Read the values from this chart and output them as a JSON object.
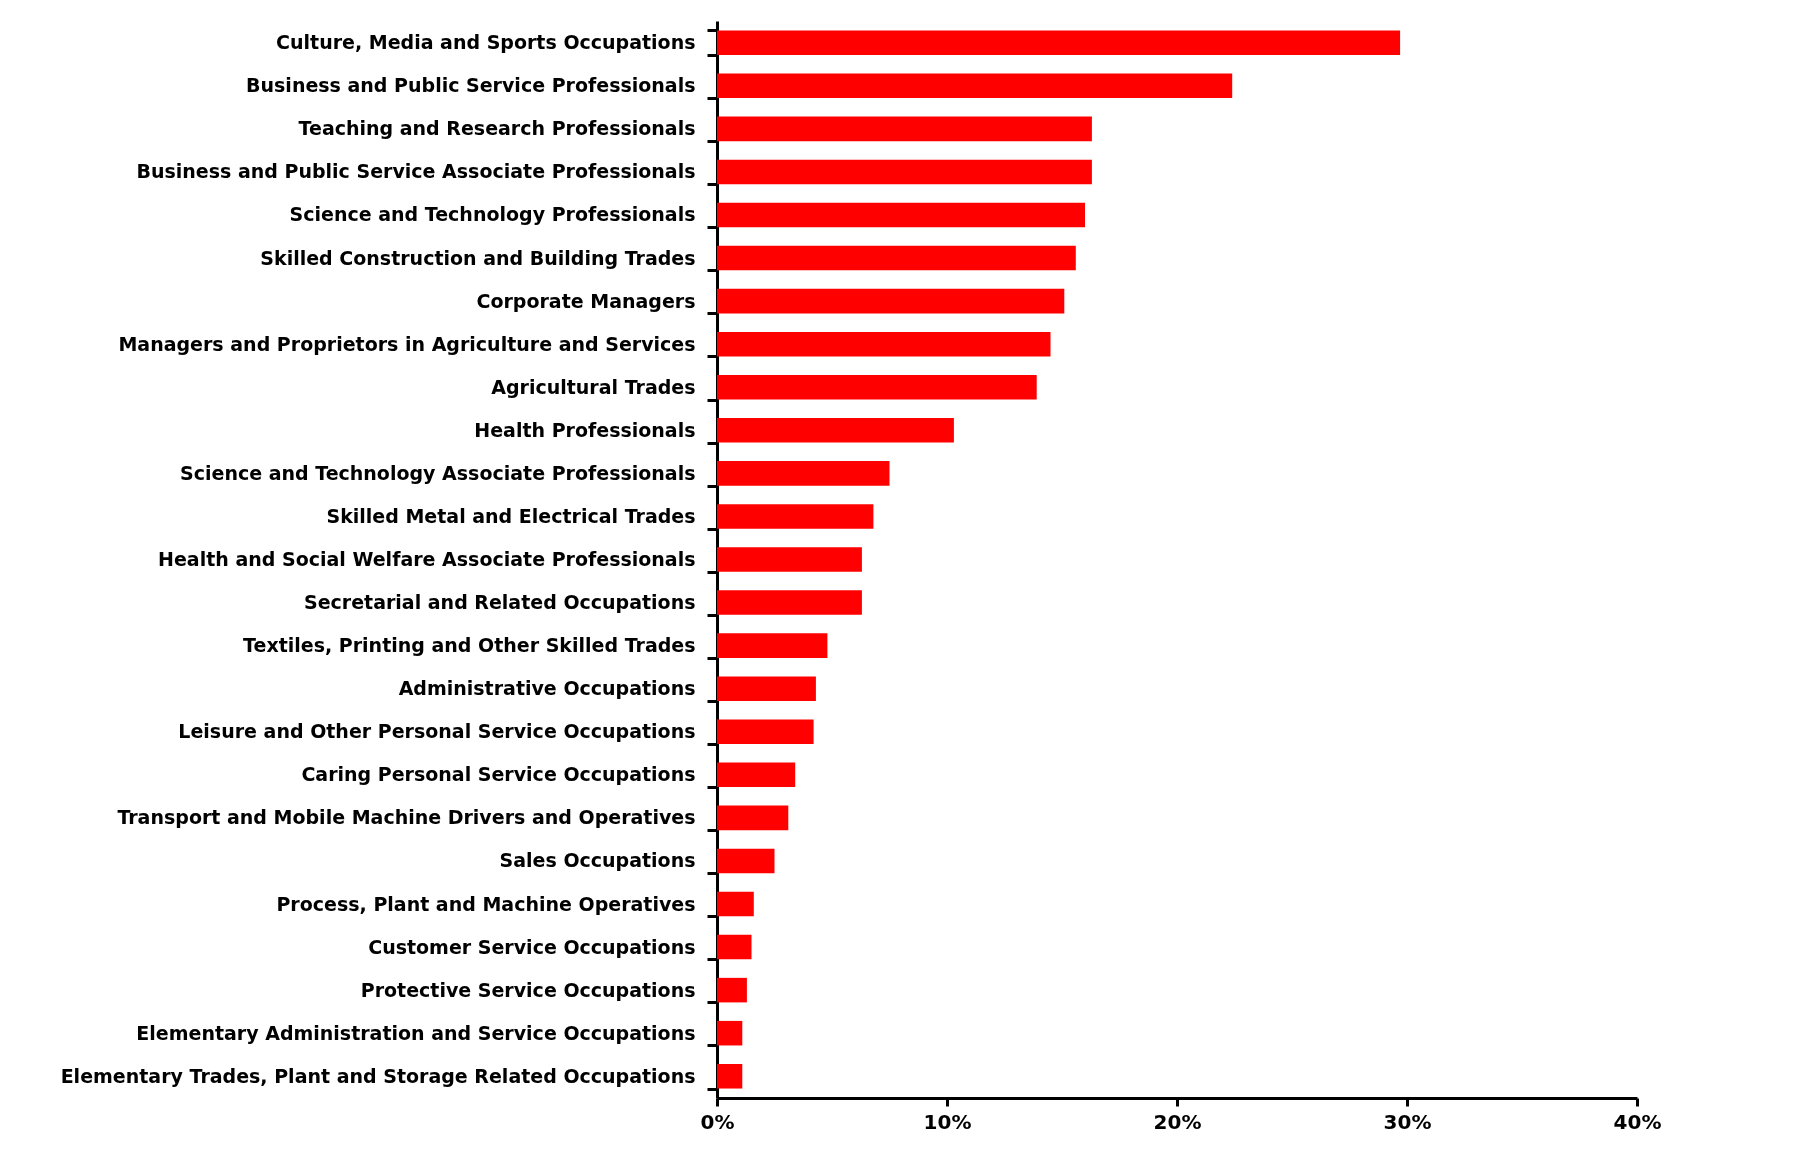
{
  "chart_data": {
    "type": "bar",
    "orientation": "horizontal",
    "categories": [
      "Culture, Media and Sports Occupations",
      "Business and Public Service Professionals",
      "Teaching and Research Professionals",
      "Business and Public Service Associate Professionals",
      "Science and Technology Professionals",
      "Skilled Construction and Building Trades",
      "Corporate Managers",
      "Managers and Proprietors in Agriculture and Services",
      "Agricultural Trades",
      "Health Professionals",
      "Science and Technology Associate Professionals",
      "Skilled Metal and Electrical Trades",
      "Health and Social Welfare Associate Professionals",
      "Secretarial and Related Occupations",
      "Textiles, Printing and Other Skilled Trades",
      "Administrative Occupations",
      "Leisure and Other Personal Service Occupations",
      "Caring Personal Service Occupations",
      "Transport and Mobile Machine Drivers and Operatives",
      "Sales Occupations",
      "Process, Plant and Machine Operatives",
      "Customer Service Occupations",
      "Protective Service Occupations",
      "Elementary Administration and Service Occupations",
      "Elementary Trades, Plant and Storage Related Occupations"
    ],
    "values": [
      29.7,
      22.4,
      16.3,
      16.3,
      16.0,
      15.6,
      15.1,
      14.5,
      13.9,
      10.3,
      7.5,
      6.8,
      6.3,
      6.3,
      4.8,
      4.3,
      4.2,
      3.4,
      3.1,
      2.5,
      1.6,
      1.5,
      1.3,
      1.1,
      1.1
    ],
    "color": "#ff0000",
    "xlim": [
      0,
      40
    ],
    "xticks": [
      {
        "value": 0,
        "label": "0%"
      },
      {
        "value": 10,
        "label": "10%"
      },
      {
        "value": 20,
        "label": "20%"
      },
      {
        "value": 30,
        "label": "30%"
      },
      {
        "value": 40,
        "label": "40%"
      }
    ],
    "grid": false
  }
}
